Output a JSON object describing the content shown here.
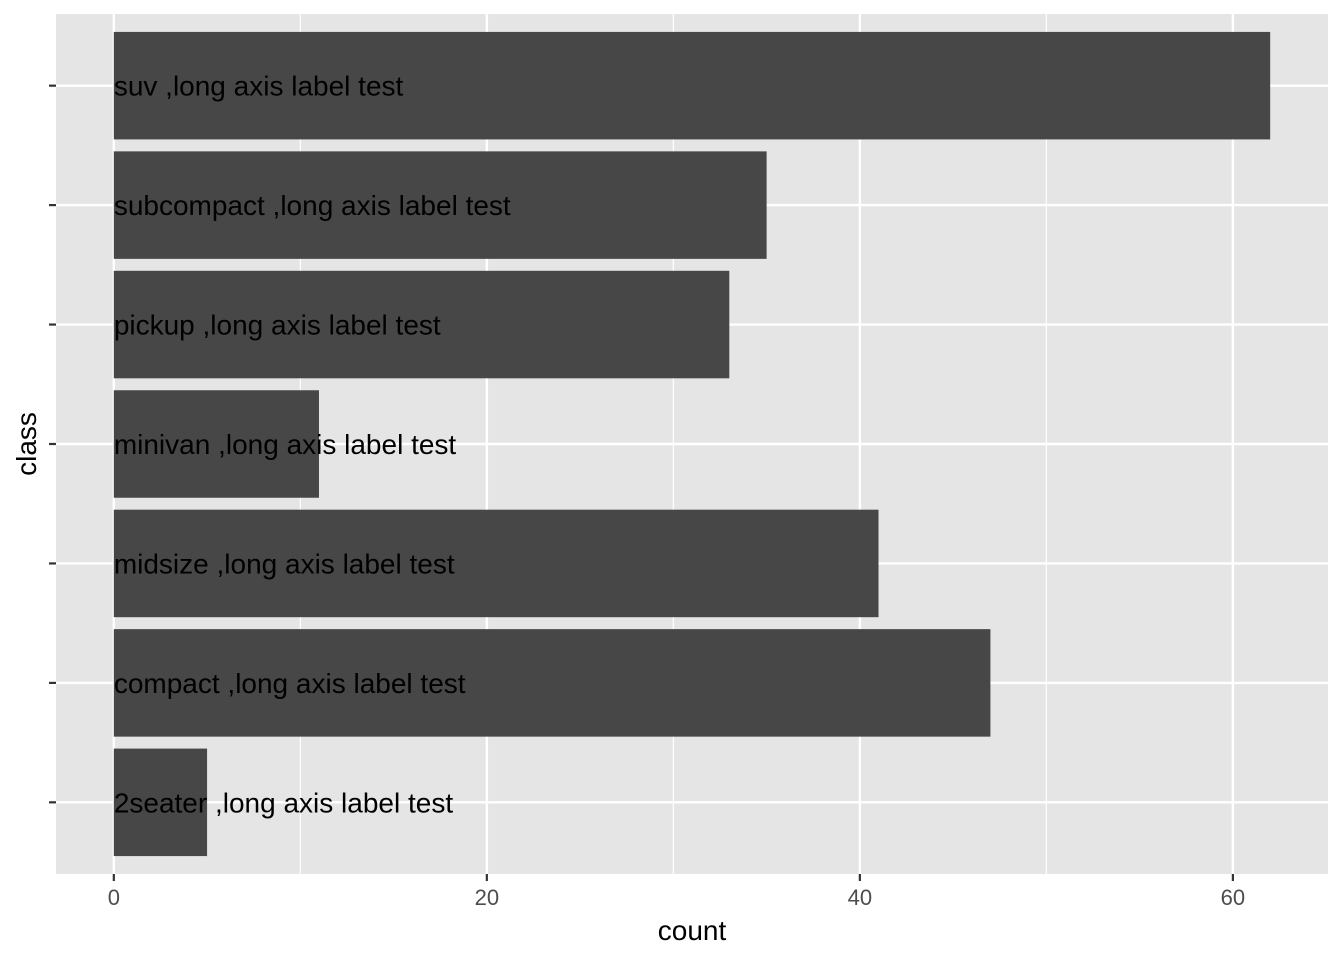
{
  "chart_data": {
    "type": "bar",
    "orientation": "horizontal",
    "categories": [
      "2seater",
      "compact",
      "midsize",
      "minivan",
      "pickup",
      "subcompact",
      "suv"
    ],
    "labels": [
      "2seater ,long axis label test",
      "compact ,long axis label test",
      "midsize ,long axis label test",
      "minivan ,long axis label test",
      "pickup ,long axis label test",
      "subcompact ,long axis label test",
      "suv ,long axis label test"
    ],
    "values": [
      5,
      47,
      41,
      11,
      33,
      35,
      62
    ],
    "xlabel": "count",
    "ylabel": "class",
    "xlim": [
      -3.1,
      65.1
    ],
    "xticks": [
      0,
      20,
      40,
      60
    ],
    "x_minor_gridlines": [
      10,
      30,
      50
    ],
    "grid": true,
    "colors": {
      "panel": "#e5e5e5",
      "grid": "#ffffff",
      "bar": "#474747",
      "label": "#000000",
      "tick_text": "#4d4d4d",
      "tick_mark": "#333333"
    }
  }
}
